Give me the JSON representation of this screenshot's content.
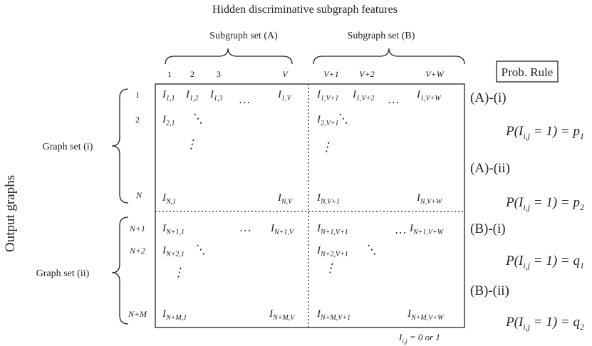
{
  "title": "Hidden discriminative subgraph features",
  "column_groups": [
    "Subgraph set (A)",
    "Subgraph set (B)"
  ],
  "column_labels": [
    "1",
    "2",
    "3",
    "V",
    "V+1",
    "V+2",
    "V+W"
  ],
  "row_groups": [
    "Graph set (i)",
    "Graph set (ii)"
  ],
  "row_labels": [
    "1",
    "2",
    "N",
    "N+1",
    "N+2",
    "N+M"
  ],
  "axis_label": "Output graphs",
  "rule_box": "Prob. Rule",
  "blocks": [
    {
      "color": "#e8302a",
      "entries": [
        {
          "text": "I",
          "sub": "1,1"
        },
        {
          "text": "I",
          "sub": "1,2"
        },
        {
          "text": "I",
          "sub": "1,3"
        },
        {
          "text": "…"
        },
        {
          "text": "I",
          "sub": "1,V"
        },
        {
          "text": "I",
          "sub": "2,1"
        },
        {
          "text": "⋱"
        },
        {
          "text": "⋮"
        },
        {
          "text": "I",
          "sub": "N,1"
        },
        {
          "text": "I",
          "sub": "N,V"
        }
      ]
    },
    {
      "color": "#2f6db5",
      "entries": [
        {
          "text": "I",
          "sub": "1,V+1"
        },
        {
          "text": "I",
          "sub": "1,V+2"
        },
        {
          "text": "…"
        },
        {
          "text": "I",
          "sub": "1,V+W"
        },
        {
          "text": "I",
          "sub": "2,V+1"
        },
        {
          "text": "⋱"
        },
        {
          "text": "⋮"
        },
        {
          "text": "I",
          "sub": "N,V+1"
        },
        {
          "text": "I",
          "sub": "N,V+W"
        }
      ]
    },
    {
      "color": "#6db943",
      "entries": [
        {
          "text": "I",
          "sub": "N+1,1"
        },
        {
          "text": "…"
        },
        {
          "text": "I",
          "sub": "N+1,V"
        },
        {
          "text": "I",
          "sub": "N+2,1"
        },
        {
          "text": "⋱"
        },
        {
          "text": "⋮"
        },
        {
          "text": "I",
          "sub": "N+M,1"
        },
        {
          "text": "I",
          "sub": "N+M,V"
        }
      ]
    },
    {
      "color": "#b04cb0",
      "entries": [
        {
          "text": "I",
          "sub": "N+1,V+1"
        },
        {
          "text": "…"
        },
        {
          "text": "I",
          "sub": "N+1,V+W"
        },
        {
          "text": "I",
          "sub": "N+2,V+1"
        },
        {
          "text": "⋱"
        },
        {
          "text": "⋮"
        },
        {
          "text": "I",
          "sub": "N+M,V+1"
        },
        {
          "text": "I",
          "sub": "N+M,V+W"
        }
      ]
    }
  ],
  "rules": [
    {
      "label": "(A)-(i)",
      "color": "#e8302a",
      "formula": {
        "text1": "P(I",
        "sub1": "i,j",
        "text2": " = 1) = p",
        "sub2": "1"
      }
    },
    {
      "label": "(A)-(ii)",
      "color": "#6db943",
      "formula": {
        "text1": "P(I",
        "sub1": "i,j",
        "text2": " = 1) = p",
        "sub2": "2"
      }
    },
    {
      "label": "(B)-(i)",
      "color": "#2f6db5",
      "formula": {
        "text1": "P(I",
        "sub1": "i,j",
        "text2": " = 1) = q",
        "sub2": "1"
      }
    },
    {
      "label": "(B)-(ii)",
      "color": "#b04cb0",
      "formula": {
        "text1": "P(I",
        "sub1": "i,j",
        "text2": " = 1) = q",
        "sub2": "2"
      }
    }
  ],
  "note": {
    "text1": "I",
    "sub1": "i,j",
    "text2": " = 0 or 1"
  }
}
